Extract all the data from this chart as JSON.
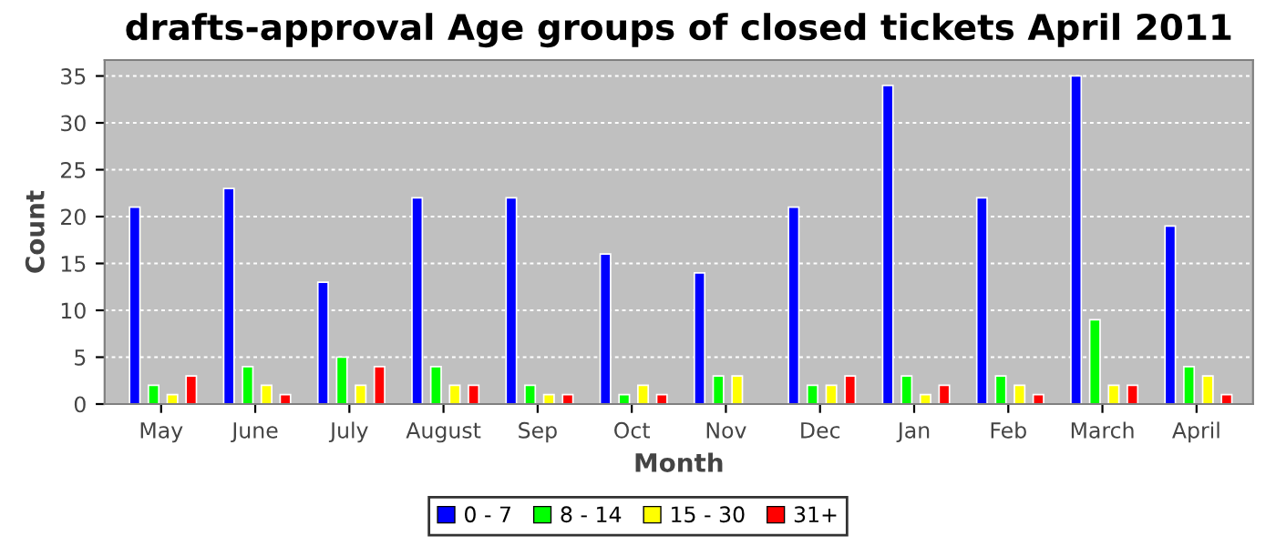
{
  "chart_data": {
    "type": "bar",
    "title": "drafts-approval Age groups of closed tickets April 2011",
    "xlabel": "Month",
    "ylabel": "Count",
    "categories": [
      "May",
      "June",
      "July",
      "August",
      "Sep",
      "Oct",
      "Nov",
      "Dec",
      "Jan",
      "Feb",
      "March",
      "April"
    ],
    "series": [
      {
        "name": "0 - 7",
        "color": "#0000ff",
        "values": [
          21,
          23,
          13,
          22,
          22,
          16,
          14,
          21,
          34,
          22,
          35,
          19
        ]
      },
      {
        "name": "8 - 14",
        "color": "#00ff00",
        "values": [
          2,
          4,
          5,
          4,
          2,
          1,
          3,
          2,
          3,
          3,
          9,
          4
        ]
      },
      {
        "name": "15 - 30",
        "color": "#ffff00",
        "values": [
          1,
          2,
          2,
          2,
          1,
          2,
          3,
          2,
          1,
          2,
          2,
          3
        ]
      },
      {
        "name": "31+",
        "color": "#ff0000",
        "values": [
          3,
          1,
          4,
          2,
          1,
          1,
          null,
          3,
          2,
          1,
          2,
          1
        ]
      }
    ],
    "ylim": [
      0,
      36.7
    ],
    "yticks": [
      0,
      5,
      10,
      15,
      20,
      25,
      30,
      35
    ],
    "grid": "y",
    "legend": "bottom"
  }
}
